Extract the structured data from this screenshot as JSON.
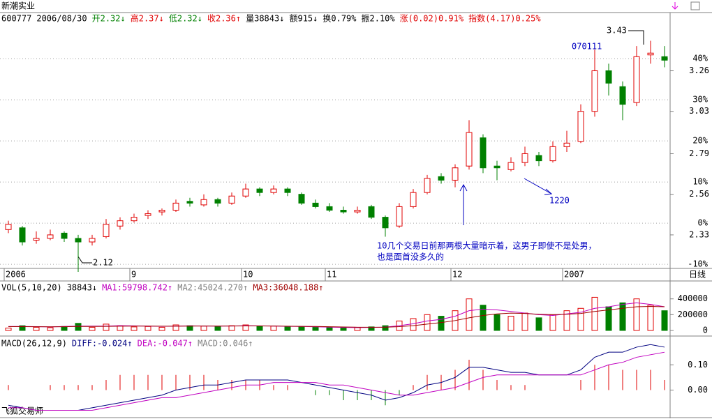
{
  "title": "新潮实业",
  "header_items": [
    {
      "text": "600777",
      "color": "#000000"
    },
    {
      "text": "2006/08/30",
      "color": "#000000"
    },
    {
      "text": "开2.32↓",
      "color": "#008000"
    },
    {
      "text": "高2.37↓",
      "color": "#e00000"
    },
    {
      "text": "低2.32↓",
      "color": "#008000"
    },
    {
      "text": "收2.36↑",
      "color": "#e00000"
    },
    {
      "text": "量38843↓",
      "color": "#000000"
    },
    {
      "text": "额915↓",
      "color": "#000000"
    },
    {
      "text": "换0.79%",
      "color": "#000000"
    },
    {
      "text": "振2.10%",
      "color": "#000000"
    },
    {
      "text": "涨(0.02)0.91%",
      "color": "#e00000"
    },
    {
      "text": "指数(4.17)0.25%",
      "color": "#e00000"
    }
  ],
  "volume_header": [
    {
      "text": "VOL(5,10,20)",
      "color": "#000000"
    },
    {
      "text": "38843↓",
      "color": "#000000"
    },
    {
      "text": "MA1:59798.742↑",
      "color": "#c000c0"
    },
    {
      "text": "MA2:45024.270↑",
      "color": "#808080"
    },
    {
      "text": "MA3:36048.188↑",
      "color": "#a00000"
    }
  ],
  "macd_header": [
    {
      "text": "MACD(26,12,9)",
      "color": "#000000"
    },
    {
      "text": "DIFF:-0.024↑",
      "color": "#000080"
    },
    {
      "text": "DEA:-0.047↑",
      "color": "#c000c0"
    },
    {
      "text": "MACD:0.046↑",
      "color": "#808080"
    }
  ],
  "annotations": {
    "high": "3.43",
    "low": "2.12",
    "peak_date": "070111",
    "dip_date": "1220",
    "note_line1": "10几个交易日前那两根大量暗示着，这男子即使不是处男，",
    "note_line2": "也是面首没多久的"
  },
  "period": "日线",
  "footer": "飞狐交易师",
  "chart_data": {
    "type": "candlestick",
    "categories": [
      "2006",
      "9",
      "10",
      "11",
      "12",
      "2007"
    ],
    "up_color": "#e00000",
    "down_color": "#008000",
    "candles": [
      [
        2.36,
        2.41,
        2.34,
        2.39
      ],
      [
        2.37,
        2.38,
        2.27,
        2.29
      ],
      [
        2.3,
        2.35,
        2.28,
        2.31
      ],
      [
        2.31,
        2.36,
        2.3,
        2.33
      ],
      [
        2.34,
        2.35,
        2.29,
        2.31
      ],
      [
        2.31,
        2.33,
        2.12,
        2.29
      ],
      [
        2.29,
        2.33,
        2.27,
        2.31
      ],
      [
        2.32,
        2.42,
        2.31,
        2.39
      ],
      [
        2.38,
        2.43,
        2.36,
        2.41
      ],
      [
        2.41,
        2.45,
        2.4,
        2.43
      ],
      [
        2.44,
        2.47,
        2.42,
        2.45
      ],
      [
        2.46,
        2.48,
        2.44,
        2.47
      ],
      [
        2.47,
        2.53,
        2.46,
        2.51
      ],
      [
        2.52,
        2.54,
        2.49,
        2.51
      ],
      [
        2.5,
        2.56,
        2.49,
        2.53
      ],
      [
        2.53,
        2.54,
        2.49,
        2.51
      ],
      [
        2.51,
        2.57,
        2.5,
        2.55
      ],
      [
        2.55,
        2.62,
        2.54,
        2.59
      ],
      [
        2.59,
        2.6,
        2.55,
        2.57
      ],
      [
        2.57,
        2.61,
        2.56,
        2.59
      ],
      [
        2.59,
        2.6,
        2.55,
        2.57
      ],
      [
        2.56,
        2.57,
        2.5,
        2.51
      ],
      [
        2.51,
        2.53,
        2.48,
        2.49
      ],
      [
        2.49,
        2.51,
        2.46,
        2.47
      ],
      [
        2.47,
        2.49,
        2.45,
        2.46
      ],
      [
        2.46,
        2.49,
        2.45,
        2.47
      ],
      [
        2.49,
        2.5,
        2.42,
        2.43
      ],
      [
        2.43,
        2.44,
        2.32,
        2.37
      ],
      [
        2.38,
        2.51,
        2.37,
        2.49
      ],
      [
        2.49,
        2.59,
        2.48,
        2.57
      ],
      [
        2.57,
        2.67,
        2.56,
        2.65
      ],
      [
        2.66,
        2.68,
        2.62,
        2.64
      ],
      [
        2.64,
        2.73,
        2.6,
        2.71
      ],
      [
        2.72,
        2.98,
        2.7,
        2.91
      ],
      [
        2.88,
        2.9,
        2.68,
        2.71
      ],
      [
        2.72,
        2.75,
        2.64,
        2.71
      ],
      [
        2.7,
        2.77,
        2.69,
        2.74
      ],
      [
        2.74,
        2.83,
        2.72,
        2.79
      ],
      [
        2.78,
        2.8,
        2.72,
        2.75
      ],
      [
        2.75,
        2.86,
        2.74,
        2.83
      ],
      [
        2.83,
        2.92,
        2.8,
        2.85
      ],
      [
        2.86,
        3.07,
        2.85,
        3.03
      ],
      [
        3.03,
        3.38,
        3.0,
        3.26
      ],
      [
        3.26,
        3.3,
        3.12,
        3.19
      ],
      [
        3.17,
        3.2,
        2.98,
        3.07
      ],
      [
        3.08,
        3.4,
        3.06,
        3.34
      ],
      [
        3.35,
        3.43,
        3.3,
        3.36
      ],
      [
        3.34,
        3.4,
        3.28,
        3.32
      ]
    ],
    "ylim": [
      2.14,
      3.59
    ],
    "yticks": [
      2.33,
      2.56,
      2.79,
      3.03,
      3.26
    ],
    "y2lim": [
      -11,
      51.2
    ],
    "y2ticks": [
      {
        "value": -10,
        "label": "-10%"
      },
      {
        "value": 0,
        "label": "0%"
      },
      {
        "value": 10,
        "label": "10%"
      },
      {
        "value": 20,
        "label": "20%"
      },
      {
        "value": 30,
        "label": "30%"
      },
      {
        "value": 40,
        "label": "40%"
      }
    ],
    "grid": true,
    "volume": {
      "values": [
        30000,
        60000,
        40000,
        35000,
        50000,
        90000,
        40000,
        80000,
        60000,
        45000,
        50000,
        40000,
        70000,
        60000,
        55000,
        50000,
        60000,
        70000,
        50000,
        55000,
        45000,
        50000,
        40000,
        35000,
        30000,
        35000,
        45000,
        60000,
        120000,
        150000,
        200000,
        180000,
        250000,
        400000,
        320000,
        200000,
        180000,
        220000,
        160000,
        200000,
        250000,
        280000,
        420000,
        300000,
        350000,
        400000,
        320000,
        250000
      ],
      "ylim": [
        -18000,
        627000
      ],
      "yticks": [
        0,
        200000,
        400000
      ],
      "series": [
        {
          "name": "MA1",
          "color": "#c000c0",
          "values": [
            50000,
            50000,
            48000,
            45000,
            50000,
            55000,
            55000,
            55000,
            60000,
            58000,
            55000,
            52000,
            55000,
            58000,
            56000,
            55000,
            56000,
            60000,
            58000,
            56000,
            52000,
            50000,
            46000,
            42000,
            38000,
            36000,
            38000,
            42000,
            60000,
            85000,
            120000,
            140000,
            180000,
            250000,
            270000,
            260000,
            240000,
            220000,
            200000,
            190000,
            210000,
            230000,
            280000,
            300000,
            330000,
            350000,
            330000,
            300000
          ]
        },
        {
          "name": "MA2",
          "color": "#a00000",
          "values": [
            48000,
            48000,
            47000,
            46000,
            47000,
            50000,
            51000,
            52000,
            54000,
            55000,
            55000,
            54000,
            54000,
            55000,
            56000,
            55000,
            56000,
            57000,
            57000,
            56000,
            54000,
            52000,
            50000,
            47000,
            44000,
            41000,
            40000,
            41000,
            48000,
            60000,
            80000,
            100000,
            125000,
            160000,
            190000,
            210000,
            220000,
            215000,
            205000,
            200000,
            205000,
            215000,
            240000,
            260000,
            280000,
            300000,
            305000,
            300000
          ]
        }
      ]
    },
    "macd": {
      "ylim": [
        -0.109,
        0.214
      ],
      "yticks": [
        {
          "value": 0,
          "label": "0.00"
        },
        {
          "value": 0.1,
          "label": "0.10"
        }
      ],
      "hist": [
        0.02,
        0,
        0,
        0.02,
        0.02,
        0.02,
        0.02,
        0.04,
        0.06,
        0.06,
        0.06,
        0.06,
        0.06,
        0.06,
        0.06,
        0.04,
        0.04,
        0.04,
        0.04,
        0.02,
        0.02,
        0,
        -0.02,
        -0.02,
        -0.04,
        -0.04,
        -0.04,
        -0.06,
        -0.02,
        0.02,
        0.06,
        0.06,
        0.08,
        0.12,
        0.08,
        0.04,
        0.02,
        0.02,
        0,
        0,
        0,
        0.04,
        0.1,
        0.1,
        0.08,
        0.08,
        0.08,
        0.04
      ],
      "series": [
        {
          "name": "DIFF",
          "color": "#000080",
          "values": [
            -0.06,
            -0.07,
            -0.08,
            -0.08,
            -0.08,
            -0.08,
            -0.07,
            -0.06,
            -0.05,
            -0.04,
            -0.03,
            -0.02,
            0,
            0.01,
            0.02,
            0.02,
            0.03,
            0.04,
            0.04,
            0.04,
            0.04,
            0.03,
            0.02,
            0.01,
            0,
            -0.01,
            -0.02,
            -0.04,
            -0.03,
            -0.01,
            0.02,
            0.03,
            0.05,
            0.09,
            0.09,
            0.08,
            0.07,
            0.07,
            0.06,
            0.06,
            0.06,
            0.08,
            0.13,
            0.15,
            0.15,
            0.17,
            0.18,
            0.17
          ]
        },
        {
          "name": "DEA",
          "color": "#c000c0",
          "values": [
            -0.07,
            -0.07,
            -0.08,
            -0.08,
            -0.08,
            -0.08,
            -0.08,
            -0.07,
            -0.06,
            -0.05,
            -0.04,
            -0.03,
            -0.03,
            -0.02,
            -0.01,
            0,
            0.01,
            0.02,
            0.02,
            0.03,
            0.03,
            0.03,
            0.03,
            0.02,
            0.02,
            0.01,
            0,
            -0.01,
            -0.02,
            -0.02,
            -0.01,
            0,
            0.01,
            0.03,
            0.05,
            0.06,
            0.06,
            0.06,
            0.06,
            0.06,
            0.06,
            0.06,
            0.08,
            0.1,
            0.11,
            0.13,
            0.14,
            0.15
          ]
        }
      ]
    }
  }
}
